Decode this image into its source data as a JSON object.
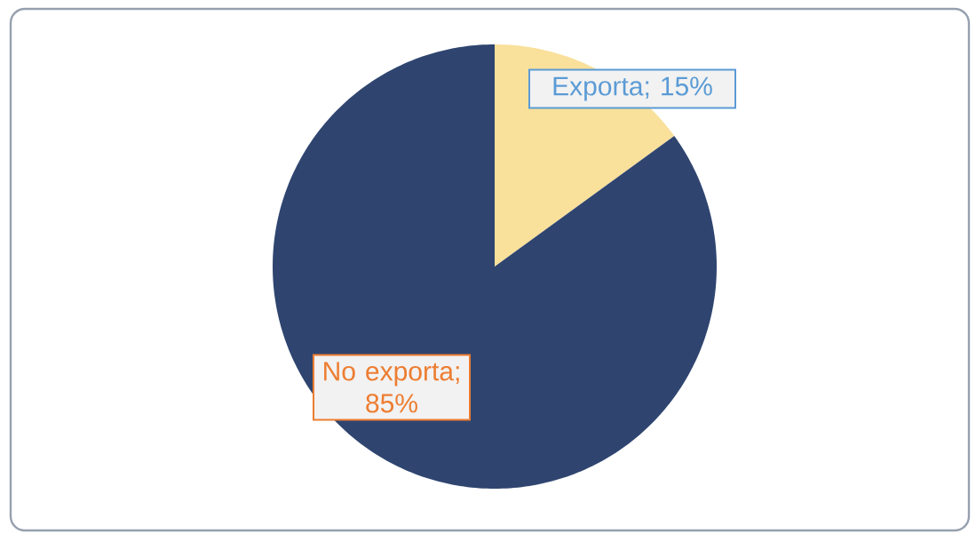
{
  "chart_data": {
    "type": "pie",
    "categories": [
      "Exporta",
      "No exporta"
    ],
    "values": [
      15,
      85
    ],
    "colors": [
      "#f9e09b",
      "#2f4570"
    ],
    "value_labels": [
      "; 15%",
      "; 85%"
    ]
  }
}
